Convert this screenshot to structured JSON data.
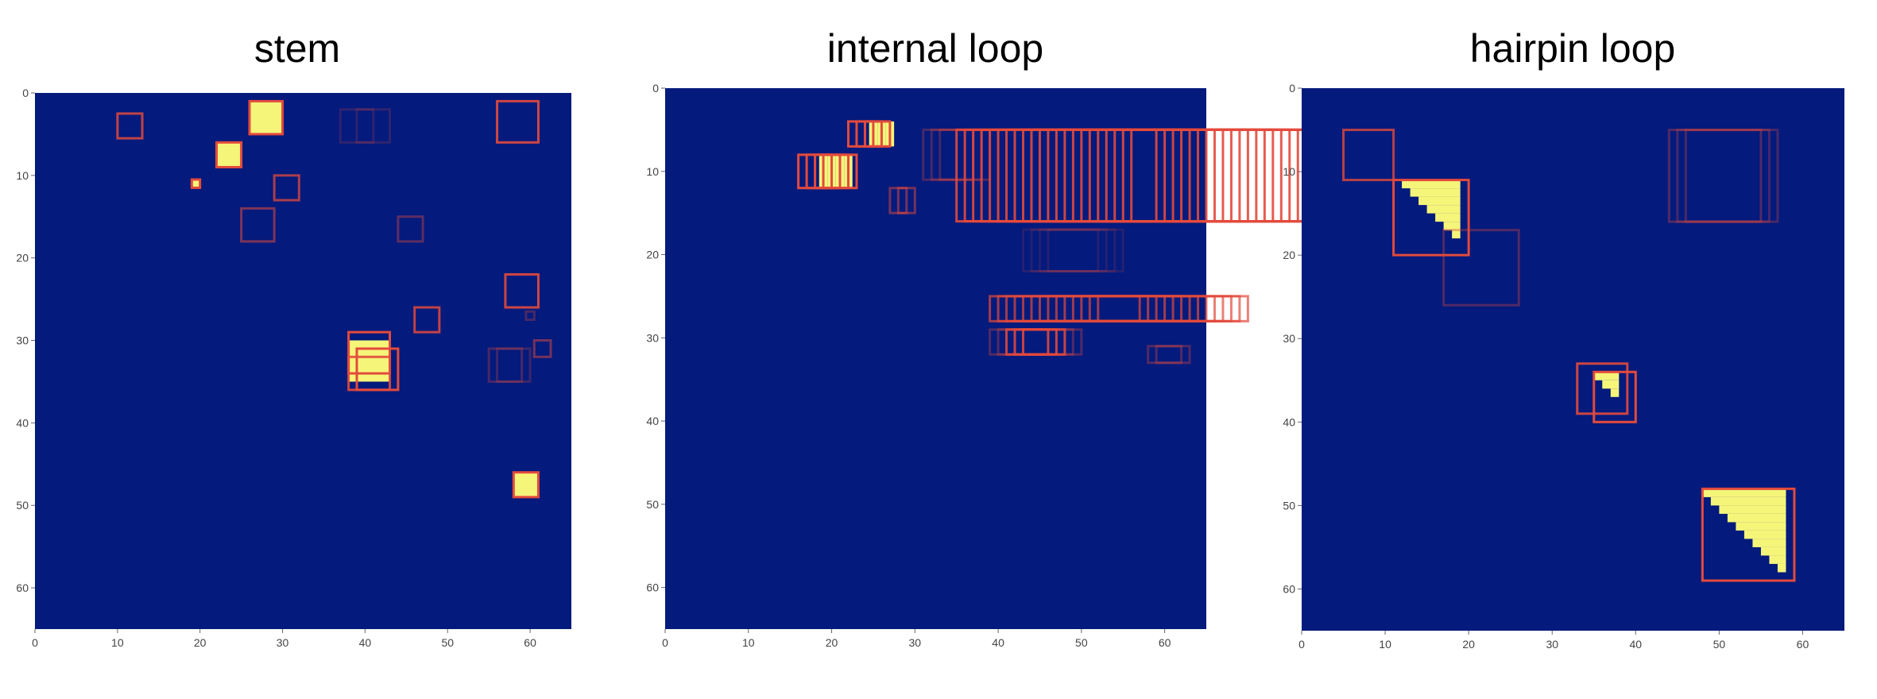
{
  "chart_data": [
    {
      "type": "heatmap",
      "title": "stem",
      "xlabel": "",
      "ylabel": "",
      "xlim": [
        0,
        65
      ],
      "ylim": [
        65,
        0
      ],
      "xticks": [
        0,
        10,
        20,
        30,
        40,
        50,
        60
      ],
      "yticks": [
        0,
        10,
        20,
        30,
        40,
        50,
        60
      ],
      "colors": {
        "background": "#041a7c",
        "cell": "#f5f57a",
        "box": "#e34a3c"
      },
      "cells": [
        {
          "x0": 26,
          "y0": 1,
          "x1": 30,
          "y1": 5
        },
        {
          "x0": 22,
          "y0": 6,
          "x1": 25,
          "y1": 9
        },
        {
          "x0": 19,
          "y0": 10.5,
          "x1": 20,
          "y1": 11.5
        },
        {
          "x0": 38,
          "y0": 30,
          "x1": 43,
          "y1": 35
        },
        {
          "x0": 58,
          "y0": 46,
          "x1": 61,
          "y1": 49
        }
      ],
      "boxes": [
        {
          "x0": 26,
          "y0": 1,
          "x1": 30,
          "y1": 5,
          "alpha": 1
        },
        {
          "x0": 22,
          "y0": 6,
          "x1": 25,
          "y1": 9,
          "alpha": 1
        },
        {
          "x0": 19,
          "y0": 10.5,
          "x1": 20,
          "y1": 11.5,
          "alpha": 1
        },
        {
          "x0": 10,
          "y0": 2.5,
          "x1": 13,
          "y1": 5.5,
          "alpha": 0.85
        },
        {
          "x0": 29,
          "y0": 10,
          "x1": 32,
          "y1": 13,
          "alpha": 0.75
        },
        {
          "x0": 25,
          "y0": 14,
          "x1": 29,
          "y1": 18,
          "alpha": 0.55
        },
        {
          "x0": 37,
          "y0": 2,
          "x1": 41,
          "y1": 6,
          "alpha": 0.2
        },
        {
          "x0": 39,
          "y0": 2,
          "x1": 43,
          "y1": 6,
          "alpha": 0.2
        },
        {
          "x0": 56,
          "y0": 1,
          "x1": 61,
          "y1": 6,
          "alpha": 0.9
        },
        {
          "x0": 44,
          "y0": 15,
          "x1": 47,
          "y1": 18,
          "alpha": 0.4
        },
        {
          "x0": 57,
          "y0": 22,
          "x1": 61,
          "y1": 26,
          "alpha": 0.9
        },
        {
          "x0": 46,
          "y0": 26,
          "x1": 49,
          "y1": 29,
          "alpha": 0.85
        },
        {
          "x0": 59.5,
          "y0": 26.5,
          "x1": 60.5,
          "y1": 27.5,
          "alpha": 0.3
        },
        {
          "x0": 60.5,
          "y0": 30,
          "x1": 62.5,
          "y1": 32,
          "alpha": 0.5
        },
        {
          "x0": 38,
          "y0": 29,
          "x1": 43,
          "y1": 34,
          "alpha": 1
        },
        {
          "x0": 39,
          "y0": 31,
          "x1": 44,
          "y1": 36,
          "alpha": 1
        },
        {
          "x0": 38,
          "y0": 32,
          "x1": 43,
          "y1": 36,
          "alpha": 0.9
        },
        {
          "x0": 55,
          "y0": 31,
          "x1": 59,
          "y1": 35,
          "alpha": 0.3
        },
        {
          "x0": 56,
          "y0": 31,
          "x1": 60,
          "y1": 35,
          "alpha": 0.25
        },
        {
          "x0": 58,
          "y0": 46,
          "x1": 61,
          "y1": 49,
          "alpha": 1
        }
      ]
    },
    {
      "type": "heatmap",
      "title": "internal loop",
      "xlabel": "",
      "ylabel": "",
      "xlim": [
        0,
        65
      ],
      "ylim": [
        65,
        0
      ],
      "xticks": [
        0,
        10,
        20,
        30,
        40,
        50,
        60
      ],
      "yticks": [
        0,
        10,
        20,
        30,
        40,
        50,
        60
      ],
      "colors": {
        "background": "#041a7c",
        "cell": "#f5f57a",
        "box": "#e34a3c"
      },
      "cells": [
        {
          "x0": 24.5,
          "y0": 4,
          "x1": 25.5,
          "y1": 7
        },
        {
          "x0": 25.5,
          "y0": 4,
          "x1": 26.5,
          "y1": 7
        },
        {
          "x0": 26.5,
          "y0": 4,
          "x1": 27.5,
          "y1": 7
        },
        {
          "x0": 18.5,
          "y0": 8,
          "x1": 19.5,
          "y1": 12
        },
        {
          "x0": 19.5,
          "y0": 8,
          "x1": 20.5,
          "y1": 12
        },
        {
          "x0": 20.5,
          "y0": 8,
          "x1": 21.5,
          "y1": 12
        },
        {
          "x0": 21.5,
          "y0": 8,
          "x1": 22.5,
          "y1": 12
        }
      ],
      "box_groups": [
        {
          "x0": 22,
          "y0": 4,
          "y1": 7,
          "w": 3,
          "step": 1,
          "n": 3,
          "alpha": 1
        },
        {
          "x0": 16,
          "y0": 8,
          "y1": 12,
          "w": 4,
          "step": 1,
          "n": 4,
          "alpha": 1
        },
        {
          "x0": 35,
          "y0": 5,
          "y1": 16,
          "w": 24,
          "step": 1,
          "n": 22,
          "alpha": 0.9
        },
        {
          "x0": 31,
          "y0": 5,
          "y1": 11,
          "w": 6,
          "step": 1,
          "n": 3,
          "alpha": 0.3
        },
        {
          "x0": 27,
          "y0": 12,
          "y1": 15,
          "w": 2,
          "step": 1,
          "n": 2,
          "alpha": 0.5
        },
        {
          "x0": 43,
          "y0": 17,
          "y1": 22,
          "w": 9,
          "step": 1,
          "n": 4,
          "alpha": 0.15
        },
        {
          "x0": 39,
          "y0": 25,
          "y1": 28,
          "w": 18,
          "step": 1,
          "n": 14,
          "alpha": 0.7
        },
        {
          "x0": 39,
          "y0": 29,
          "y1": 32,
          "w": 7,
          "step": 1,
          "n": 5,
          "alpha": 0.35
        },
        {
          "x0": 41,
          "y0": 29,
          "y1": 32,
          "w": 5,
          "step": 1,
          "n": 3,
          "alpha": 0.8
        },
        {
          "x0": 58,
          "y0": 31,
          "y1": 33,
          "w": 4,
          "step": 1,
          "n": 2,
          "alpha": 0.35
        }
      ]
    },
    {
      "type": "heatmap",
      "title": "hairpin loop",
      "xlabel": "",
      "ylabel": "",
      "xlim": [
        0,
        65
      ],
      "ylim": [
        65,
        0
      ],
      "xticks": [
        0,
        10,
        20,
        30,
        40,
        50,
        60
      ],
      "yticks": [
        0,
        10,
        20,
        30,
        40,
        50,
        60
      ],
      "colors": {
        "background": "#041a7c",
        "cell": "#f5f57a",
        "box": "#e34a3c"
      },
      "triangles": [
        {
          "x0": 12,
          "y0": 11,
          "n": 7
        },
        {
          "x0": 35,
          "y0": 34,
          "n": 3
        },
        {
          "x0": 48,
          "y0": 48,
          "n": 10
        }
      ],
      "boxes": [
        {
          "x0": 5,
          "y0": 5,
          "x1": 11,
          "y1": 11,
          "alpha": 0.8
        },
        {
          "x0": 11,
          "y0": 11,
          "x1": 20,
          "y1": 20,
          "alpha": 1
        },
        {
          "x0": 17,
          "y0": 17,
          "x1": 26,
          "y1": 26,
          "alpha": 0.35
        },
        {
          "x0": 44,
          "y0": 5,
          "x1": 55,
          "y1": 16,
          "alpha": 0.35
        },
        {
          "x0": 45,
          "y0": 5,
          "x1": 56,
          "y1": 16,
          "alpha": 0.3
        },
        {
          "x0": 46,
          "y0": 5,
          "x1": 57,
          "y1": 16,
          "alpha": 0.3
        },
        {
          "x0": 33,
          "y0": 33,
          "x1": 39,
          "y1": 39,
          "alpha": 0.9
        },
        {
          "x0": 35,
          "y0": 34,
          "x1": 40,
          "y1": 40,
          "alpha": 1
        },
        {
          "x0": 48,
          "y0": 48,
          "x1": 59,
          "y1": 59,
          "alpha": 1
        }
      ]
    }
  ]
}
